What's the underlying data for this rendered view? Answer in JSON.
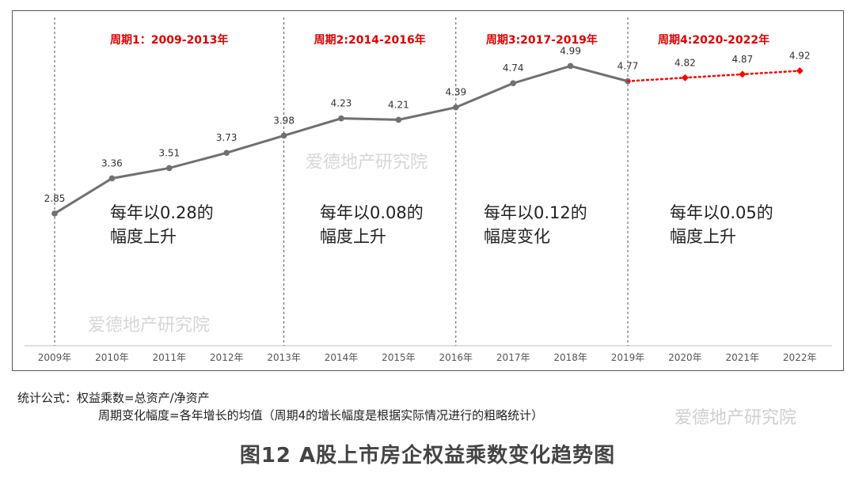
{
  "chart_data": {
    "type": "line",
    "categories": [
      "2009年",
      "2010年",
      "2011年",
      "2012年",
      "2013年",
      "2014年",
      "2015年",
      "2016年",
      "2017年",
      "2018年",
      "2019年",
      "2020年",
      "2021年",
      "2022年"
    ],
    "series": [
      {
        "values": [
          2.85,
          3.36,
          3.51,
          3.73,
          3.98,
          4.23,
          4.21,
          4.39,
          4.74,
          4.99,
          4.77,
          null,
          null,
          null
        ],
        "color": "#707070",
        "style": "solid"
      },
      {
        "values": [
          null,
          null,
          null,
          null,
          null,
          null,
          null,
          null,
          null,
          null,
          4.77,
          4.82,
          4.87,
          4.92
        ],
        "color": "#ff0000",
        "style": "dotted"
      }
    ],
    "data_labels": [
      "2.85",
      "3.36",
      "3.51",
      "3.73",
      "3.98",
      "4.23",
      "4.21",
      "4.39",
      "4.74",
      "4.99",
      "4.77",
      "4.82",
      "4.87",
      "4.92"
    ],
    "ylim": [
      2.0,
      5.5
    ],
    "grid": false,
    "periods": [
      {
        "label": "周期1：2009-2013年",
        "start": 0,
        "end": 4,
        "note_line1": "每年以0.28的",
        "note_line2": "幅度上升"
      },
      {
        "label": "周期2:2014-2016年",
        "start": 4,
        "end": 7,
        "note_line1": "每年以0.08的",
        "note_line2": "幅度上升"
      },
      {
        "label": "周期3:2017-2019年",
        "start": 7,
        "end": 10,
        "note_line1": "每年以0.12的",
        "note_line2": "幅度变化"
      },
      {
        "label": "周期4:2020-2022年",
        "start": 10,
        "end": 13,
        "note_line1": "每年以0.05的",
        "note_line2": "幅度上升"
      }
    ],
    "period_label_color": "#e00000"
  },
  "watermark": "爱德地产研究院",
  "formula": {
    "line1": "统计公式：权益乘数=总资产/净资产",
    "line2": "周期变化幅度=各年增长的均值（周期4的增长幅度是根据实际情况进行的粗略统计）"
  },
  "caption": "图12  A股上市房企权益乘数变化趋势图"
}
